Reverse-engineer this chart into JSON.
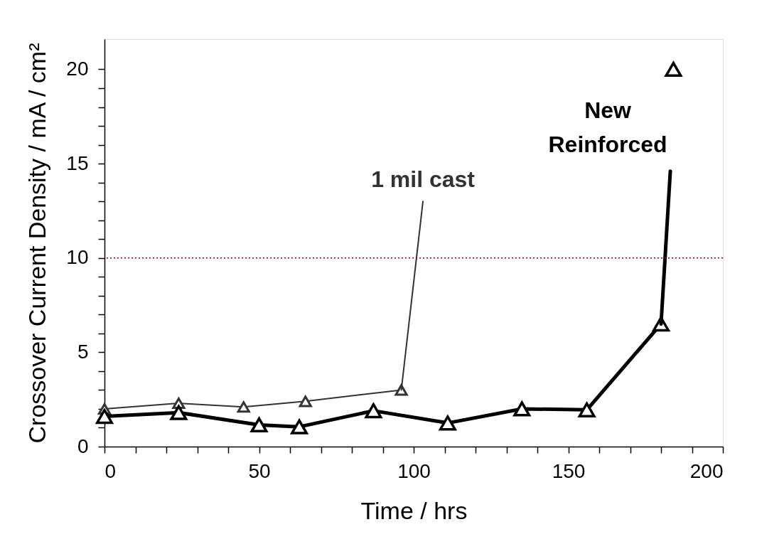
{
  "chart_data": {
    "type": "line",
    "xlabel": "Time / hrs",
    "ylabel": "Crossover Current Density / mA / cm²",
    "xlim": [
      0,
      200
    ],
    "xticks": [
      0,
      {
        "value": 10,
        "label": null
      },
      {
        "value": 20,
        "label": null
      },
      {
        "value": 30,
        "label": null
      },
      {
        "value": 40,
        "label": null
      },
      50,
      {
        "value": 60,
        "label": null
      },
      {
        "value": 70,
        "label": null
      },
      {
        "value": 80,
        "label": null
      },
      {
        "value": 90,
        "label": null
      },
      100,
      {
        "value": 110,
        "label": null
      },
      {
        "value": 120,
        "label": null
      },
      {
        "value": 130,
        "label": null
      },
      {
        "value": 140,
        "label": null
      },
      150,
      {
        "value": 160,
        "label": null
      },
      {
        "value": 170,
        "label": null
      },
      {
        "value": 180,
        "label": null
      },
      {
        "value": 190,
        "label": null
      },
      200
    ],
    "ylim": [
      0,
      21.6
    ],
    "yticks": [
      0,
      {
        "value": 1,
        "label": null
      },
      {
        "value": 2,
        "label": null
      },
      {
        "value": 3,
        "label": null
      },
      {
        "value": 4,
        "label": null
      },
      5,
      {
        "value": 6,
        "label": null
      },
      {
        "value": 7,
        "label": null
      },
      {
        "value": 8,
        "label": null
      },
      {
        "value": 9,
        "label": null
      },
      10,
      {
        "value": 11,
        "label": null
      },
      {
        "value": 12,
        "label": null
      },
      {
        "value": 13,
        "label": null
      },
      {
        "value": 14,
        "label": null
      },
      15,
      {
        "value": 16,
        "label": null
      },
      {
        "value": 17,
        "label": null
      },
      {
        "value": 18,
        "label": null
      },
      {
        "value": 19,
        "label": null
      },
      20
    ],
    "grid": false,
    "legend": false,
    "marker": "triangle",
    "series": [
      {
        "name": "1 mil cast",
        "color": "#333333",
        "x": [
          0,
          24,
          45,
          65,
          96
        ],
        "values": [
          2.0,
          2.3,
          2.1,
          2.4,
          3.0
        ]
      },
      {
        "color": "#333333",
        "x": [
          96,
          103
        ],
        "values": [
          3.0,
          13.0
        ],
        "marker": "none"
      },
      {
        "name": "New Reinforced",
        "color": "#000000",
        "x": [
          0,
          24,
          50,
          63,
          87,
          111,
          135,
          156,
          180
        ],
        "values": [
          1.6,
          1.8,
          1.15,
          1.05,
          1.9,
          1.25,
          2.0,
          1.95,
          6.5
        ]
      },
      {
        "color": "#000000",
        "x": [
          180,
          183
        ],
        "values": [
          6.5,
          14.6
        ],
        "marker": "none"
      },
      {
        "type": "scatter",
        "color": "#000000",
        "x": [
          184
        ],
        "values": [
          20
        ]
      }
    ],
    "ref_lines": [
      {
        "axis": "y",
        "value": 10,
        "color": "#990000",
        "line_style": "dotted"
      }
    ]
  }
}
